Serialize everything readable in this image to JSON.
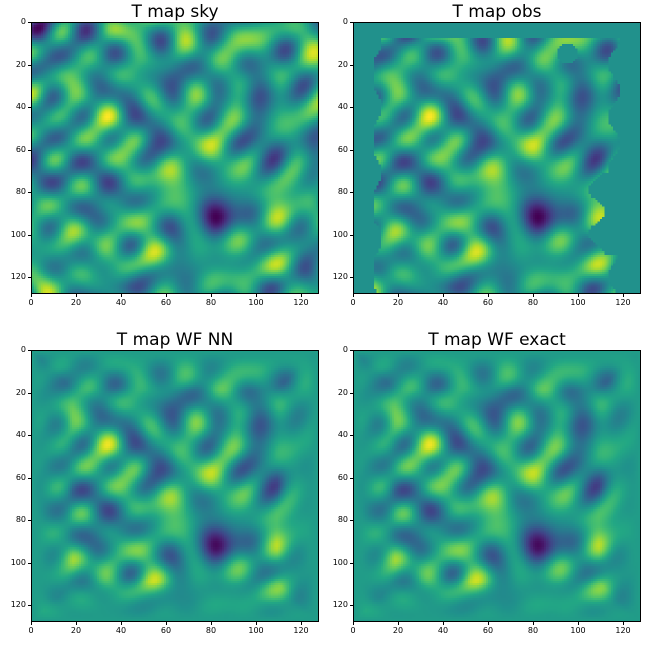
{
  "panels": [
    {
      "id": "sky",
      "title": "T map sky",
      "mask": false,
      "smooth": false,
      "seed": 1
    },
    {
      "id": "obs",
      "title": "T map obs",
      "mask": true,
      "smooth": false,
      "seed": 1
    },
    {
      "id": "wfnn",
      "title": "T map WF NN",
      "mask": false,
      "smooth": true,
      "seed": 1
    },
    {
      "id": "wfexact",
      "title": "T map WF exact",
      "mask": false,
      "smooth": true,
      "seed": 1
    }
  ],
  "axis": {
    "x_ticks": [
      "0",
      "20",
      "40",
      "60",
      "80",
      "100",
      "120"
    ],
    "y_ticks": [
      "0",
      "20",
      "40",
      "60",
      "80",
      "100",
      "120"
    ],
    "range": [
      0,
      128
    ]
  },
  "colormap": "viridis",
  "mask_color": "#21918c"
}
